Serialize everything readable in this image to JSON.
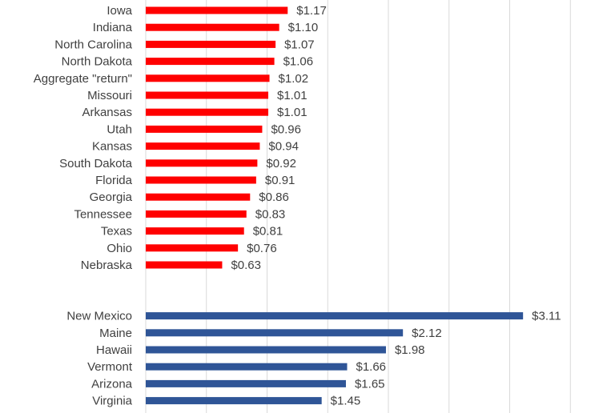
{
  "chart_data": {
    "type": "bar",
    "orientation": "horizontal",
    "value_format": "currency_usd_2dp",
    "xlim": [
      0,
      3.5
    ],
    "x_gridline_step": 0.5,
    "grid": true,
    "series": [
      {
        "color": "#ff0000",
        "categories": [
          "Iowa",
          "Indiana",
          "North Carolina",
          "North Dakota",
          "Aggregate \"return\"",
          "Missouri",
          "Arkansas",
          "Utah",
          "Kansas",
          "South Dakota",
          "Florida",
          "Georgia",
          "Tennessee",
          "Texas",
          "Ohio",
          "Nebraska"
        ],
        "values": [
          1.17,
          1.1,
          1.07,
          1.06,
          1.02,
          1.01,
          1.01,
          0.96,
          0.94,
          0.92,
          0.91,
          0.86,
          0.83,
          0.81,
          0.76,
          0.63
        ],
        "labels": [
          "$1.17",
          "$1.10",
          "$1.07",
          "$1.06",
          "$1.02",
          "$1.01",
          "$1.01",
          "$0.96",
          "$0.94",
          "$0.92",
          "$0.91",
          "$0.86",
          "$0.83",
          "$0.81",
          "$0.76",
          "$0.63"
        ]
      },
      {
        "color": "#2f5597",
        "categories": [
          "New Mexico",
          "Maine",
          "Hawaii",
          "Vermont",
          "Arizona",
          "Virginia"
        ],
        "values": [
          3.11,
          2.12,
          1.98,
          1.66,
          1.65,
          1.45
        ],
        "labels": [
          "$3.11",
          "$2.12",
          "$1.98",
          "$1.66",
          "$1.65",
          "$1.45"
        ]
      }
    ]
  }
}
